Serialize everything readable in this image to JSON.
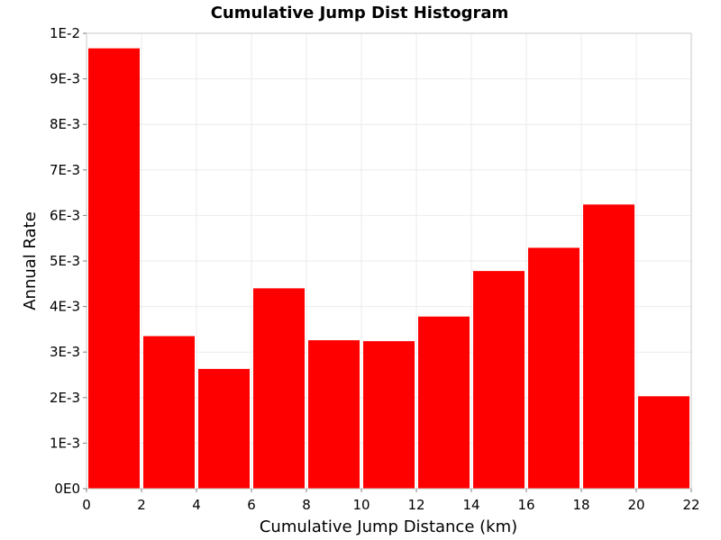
{
  "chart_data": {
    "type": "bar",
    "title": "Cumulative Jump Dist Histogram",
    "xlabel": "Cumulative Jump Distance (km)",
    "ylabel": "Annual Rate",
    "xlim": [
      0,
      22
    ],
    "ylim": [
      0,
      0.01
    ],
    "grid": true,
    "bar_color": "#ff0000",
    "x_ticks": [
      0,
      2,
      4,
      6,
      8,
      10,
      12,
      14,
      16,
      18,
      20,
      22
    ],
    "x_tick_labels": [
      "0",
      "2",
      "4",
      "6",
      "8",
      "10",
      "12",
      "14",
      "16",
      "18",
      "20",
      "22"
    ],
    "y_ticks": [
      0,
      0.001,
      0.002,
      0.003,
      0.004,
      0.005,
      0.006,
      0.007,
      0.008,
      0.009,
      0.01
    ],
    "y_tick_labels": [
      "0E0",
      "1E-3",
      "2E-3",
      "3E-3",
      "4E-3",
      "5E-3",
      "6E-3",
      "7E-3",
      "8E-3",
      "9E-3",
      "1E-2"
    ],
    "bins": [
      {
        "x0": 0,
        "x1": 2,
        "value": 0.00967
      },
      {
        "x0": 2,
        "x1": 4,
        "value": 0.00335
      },
      {
        "x0": 4,
        "x1": 6,
        "value": 0.00263
      },
      {
        "x0": 6,
        "x1": 8,
        "value": 0.0044
      },
      {
        "x0": 8,
        "x1": 10,
        "value": 0.00326
      },
      {
        "x0": 10,
        "x1": 12,
        "value": 0.00324
      },
      {
        "x0": 12,
        "x1": 14,
        "value": 0.00378
      },
      {
        "x0": 14,
        "x1": 16,
        "value": 0.00478
      },
      {
        "x0": 16,
        "x1": 18,
        "value": 0.00529
      },
      {
        "x0": 18,
        "x1": 20,
        "value": 0.00624
      },
      {
        "x0": 20,
        "x1": 22,
        "value": 0.00203
      }
    ]
  }
}
